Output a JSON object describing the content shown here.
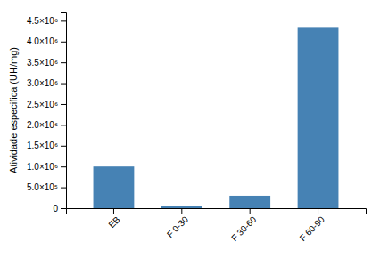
{
  "chart_data": {
    "type": "bar",
    "categories": [
      "EB",
      "F 0-30",
      "F 30-60",
      "F 60-90"
    ],
    "values": [
      1000000,
      50000,
      300000,
      4350000
    ],
    "ylabel": "Atividade especifica (UH/mg)",
    "ylim": [
      0,
      4700000
    ],
    "yticks": [
      0,
      {
        "value": 500000,
        "label": "5.0×10⁵"
      },
      {
        "value": 1000000,
        "label": "1.0×10⁶"
      },
      {
        "value": 1500000,
        "label": "1.5×10⁶"
      },
      {
        "value": 2000000,
        "label": "2.0×10⁶"
      },
      {
        "value": 2500000,
        "label": "2.5×10⁶"
      },
      {
        "value": 3000000,
        "label": "3.0×10⁶"
      },
      {
        "value": 3500000,
        "label": "3.5×10⁶"
      },
      {
        "value": 4000000,
        "label": "4.0×10⁶"
      },
      {
        "value": 4500000,
        "label": "4.5×10⁶"
      }
    ],
    "grid": false
  }
}
